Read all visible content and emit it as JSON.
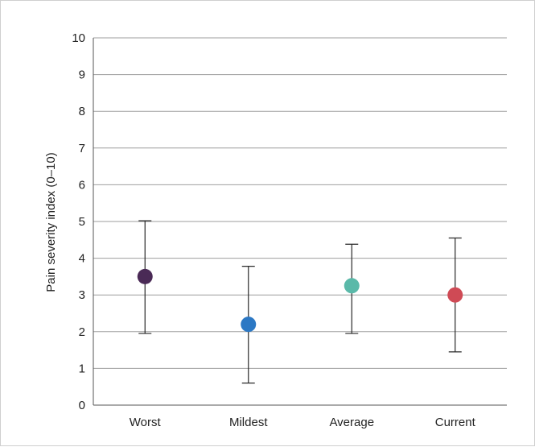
{
  "chart_data": {
    "type": "scatter",
    "ylabel": "Pain severity index (0–10)",
    "xlabel": "",
    "title": "",
    "ylim": [
      0,
      10
    ],
    "yticks": [
      0,
      1,
      2,
      3,
      4,
      5,
      6,
      7,
      8,
      9,
      10
    ],
    "grid": true,
    "categories": [
      "Worst",
      "Mildest",
      "Average",
      "Current"
    ],
    "values": [
      3.5,
      2.2,
      3.25,
      3.0
    ],
    "error_low": [
      1.95,
      0.6,
      1.95,
      1.45
    ],
    "error_high": [
      5.02,
      3.78,
      4.38,
      4.55
    ],
    "colors": [
      "#4a2a56",
      "#2c78c4",
      "#5ab9a9",
      "#cf4a55"
    ]
  }
}
